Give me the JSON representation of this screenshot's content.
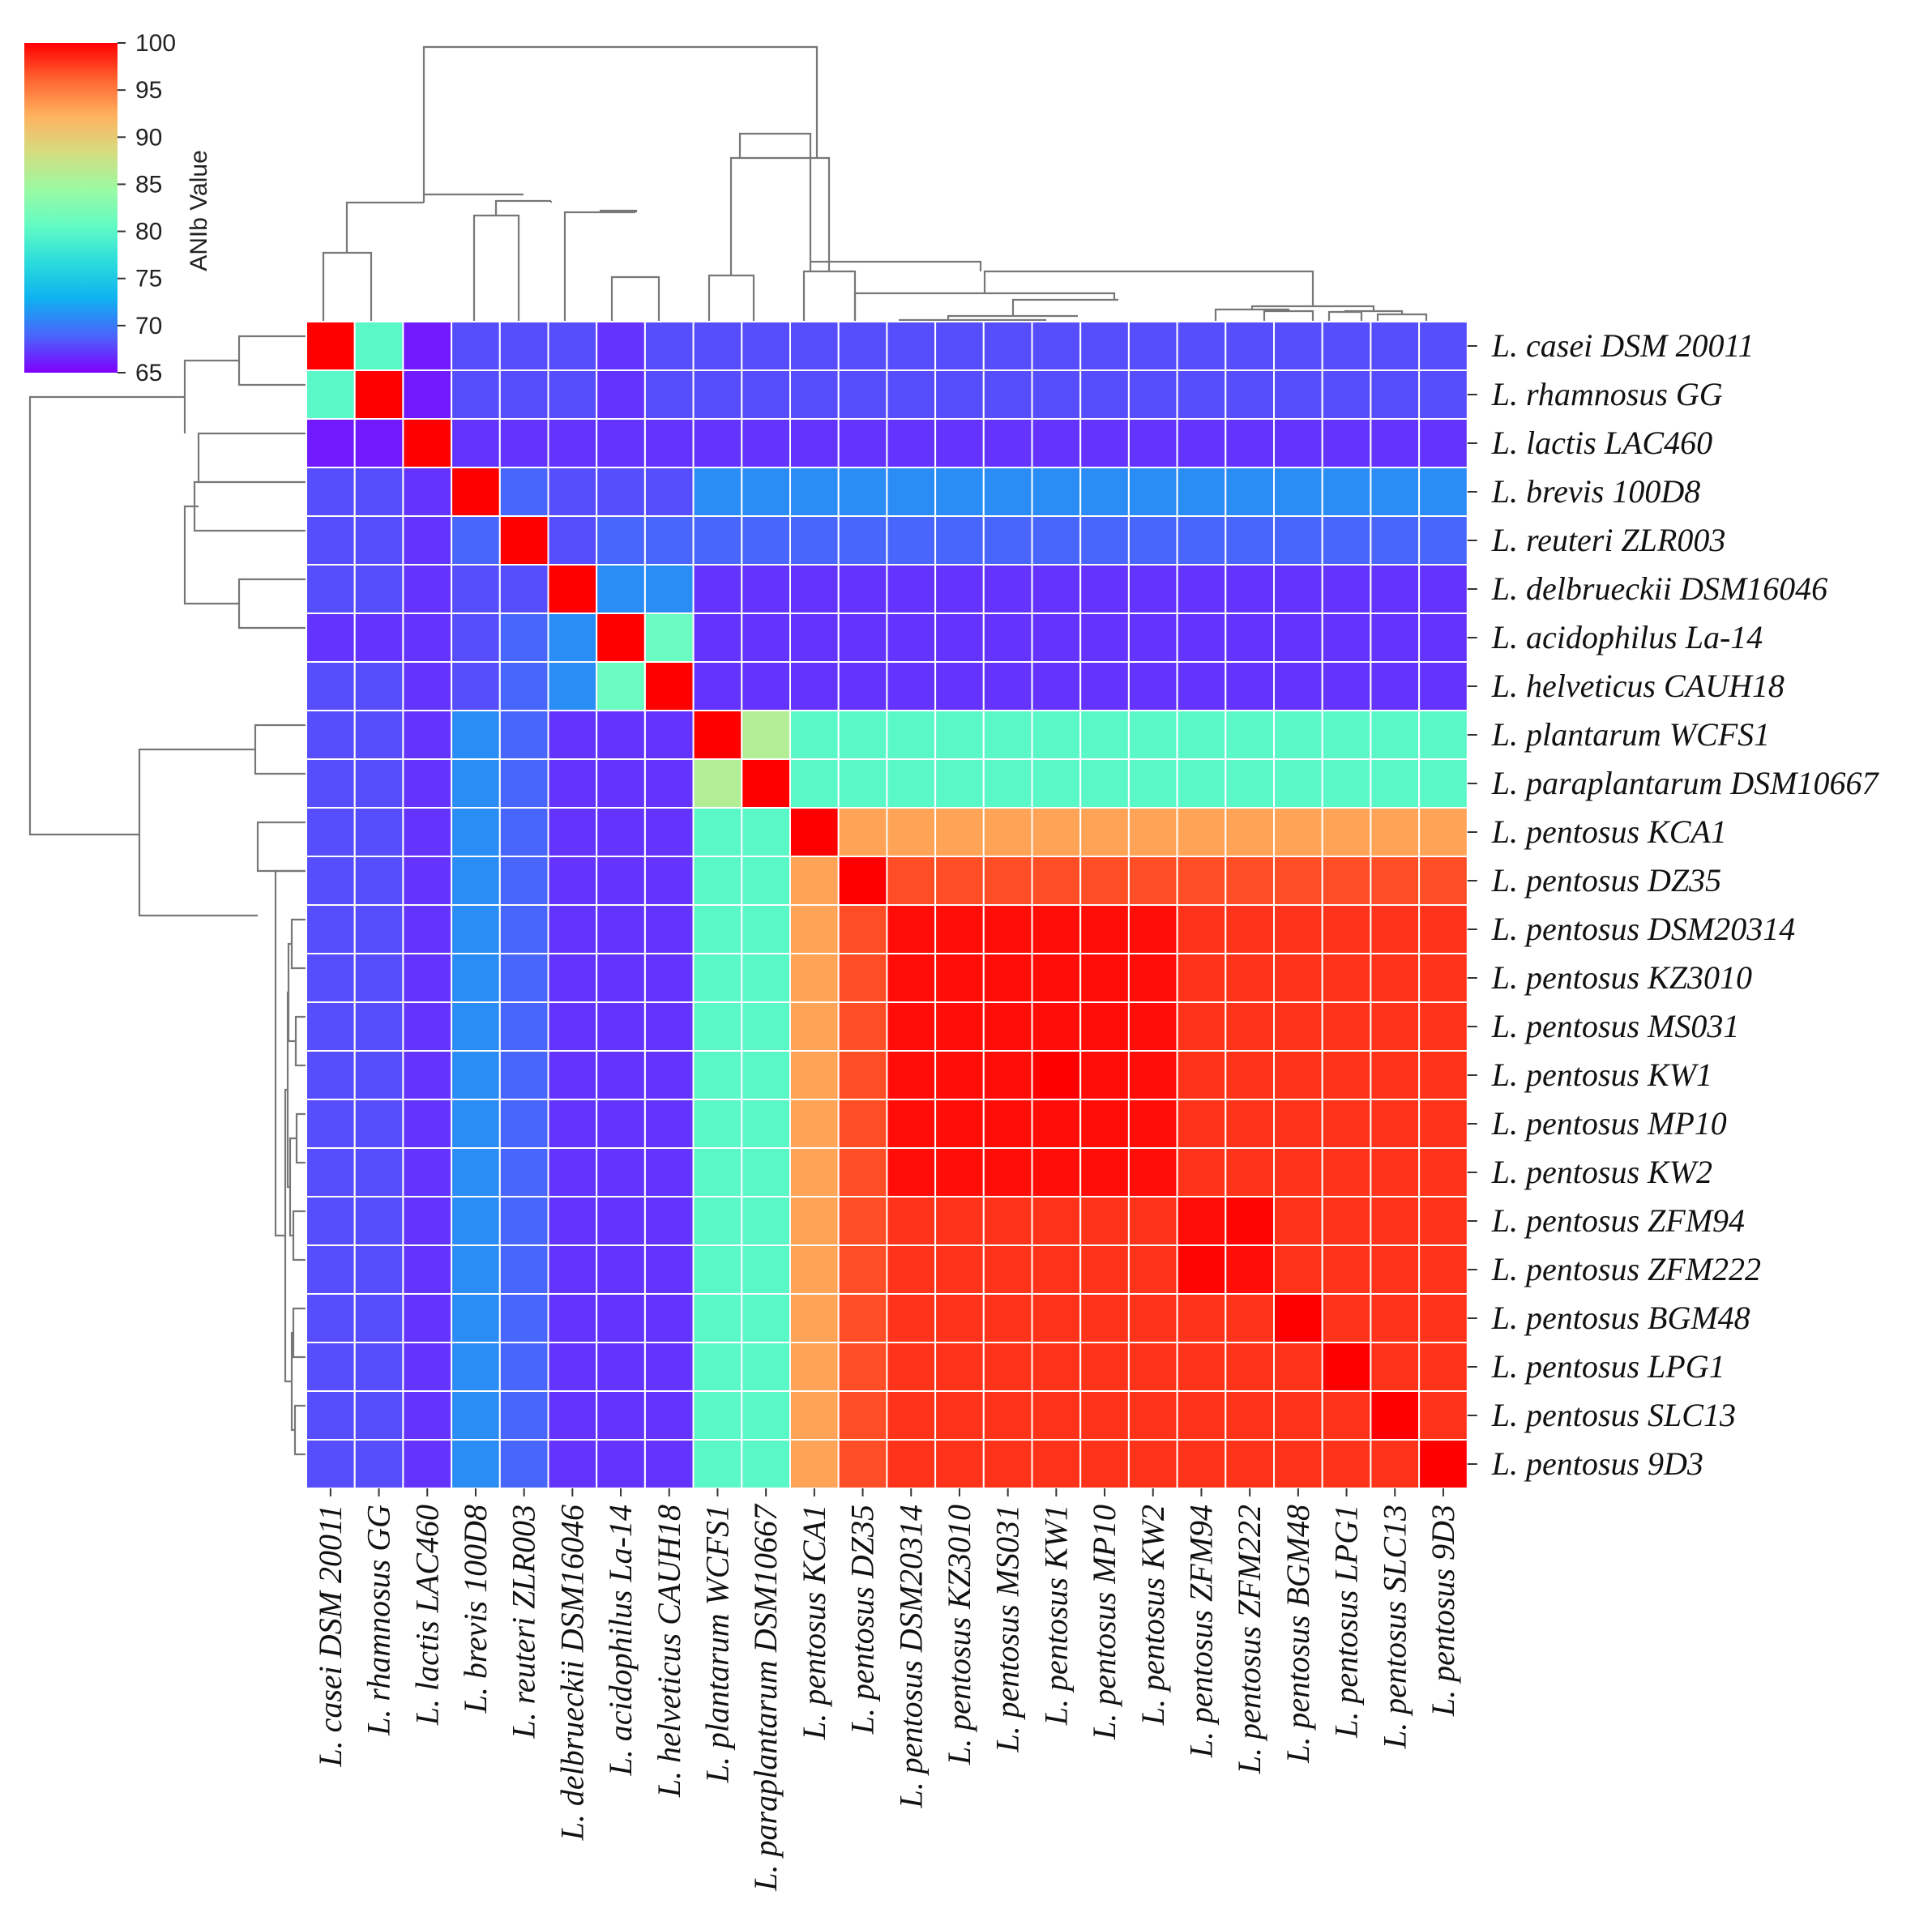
{
  "chart_data": {
    "type": "heatmap",
    "title": "",
    "colorbar": {
      "title": "ANIb Value",
      "min": 65,
      "max": 100,
      "ticks": [
        100,
        95,
        90,
        85,
        80,
        75,
        70,
        65
      ],
      "colormap": "rainbow",
      "colors": [
        "#7f00ff",
        "#4a64fb",
        "#0fb0f0",
        "#2adcdc",
        "#62fbc4",
        "#9bfaa3",
        "#d4dd80",
        "#ffb360",
        "#ff6430",
        "#ff0000"
      ]
    },
    "labels": [
      "L. casei DSM 20011",
      "L. rhamnosus GG",
      "L. lactis LAC460",
      "L. brevis 100D8",
      "L. reuteri ZLR003",
      "L. delbrueckii DSM16046",
      "L. acidophilus La-14",
      "L. helveticus CAUH18",
      "L. plantarum WCFS1",
      "L. paraplantarum DSM10667",
      "L. pentosus KCA1",
      "L. pentosus DZ35",
      "L. pentosus DSM20314",
      "L. pentosus KZ3010",
      "L. pentosus MS031",
      "L. pentosus KW1",
      "L. pentosus MP10",
      "L. pentosus KW2",
      "L. pentosus ZFM94",
      "L. pentosus ZFM222",
      "L. pentosus BGM48",
      "L. pentosus LPG1",
      "L. pentosus SLC13",
      "L. pentosus 9D3"
    ],
    "values": [
      [
        100,
        80,
        66,
        68,
        68,
        68,
        67,
        68,
        68,
        68,
        68,
        68,
        68,
        68,
        68,
        68,
        68,
        68,
        68,
        68,
        68,
        68,
        68,
        68
      ],
      [
        80,
        100,
        66,
        68,
        68,
        68,
        67,
        68,
        68,
        68,
        68,
        68,
        68,
        68,
        68,
        68,
        68,
        68,
        68,
        68,
        68,
        68,
        68,
        68
      ],
      [
        66,
        66,
        100,
        67,
        67,
        67,
        67,
        67,
        67,
        67,
        67,
        67,
        67,
        67,
        67,
        67,
        67,
        67,
        67,
        67,
        67,
        67,
        67,
        67
      ],
      [
        68,
        68,
        67,
        100,
        69,
        68,
        68,
        68,
        71,
        71,
        71,
        71,
        71,
        71,
        71,
        71,
        71,
        71,
        71,
        71,
        71,
        71,
        71,
        71
      ],
      [
        68,
        68,
        67,
        69,
        100,
        68,
        69,
        69,
        69,
        69,
        69,
        69,
        69,
        69,
        69,
        69,
        69,
        69,
        69,
        69,
        69,
        69,
        69,
        69
      ],
      [
        68,
        68,
        67,
        68,
        68,
        100,
        71,
        71,
        67,
        67,
        67,
        67,
        67,
        67,
        67,
        67,
        67,
        67,
        67,
        67,
        67,
        67,
        67,
        67
      ],
      [
        67,
        67,
        67,
        68,
        69,
        71,
        100,
        81,
        67,
        67,
        67,
        67,
        67,
        67,
        67,
        67,
        67,
        67,
        67,
        67,
        67,
        67,
        67,
        67
      ],
      [
        68,
        68,
        67,
        68,
        69,
        71,
        81,
        100,
        67,
        67,
        67,
        67,
        67,
        67,
        67,
        67,
        67,
        67,
        67,
        67,
        67,
        67,
        67,
        67
      ],
      [
        68,
        68,
        67,
        71,
        69,
        67,
        67,
        67,
        100,
        86,
        80,
        80,
        80,
        80,
        80,
        80,
        80,
        80,
        80,
        80,
        80,
        80,
        80,
        80
      ],
      [
        68,
        68,
        67,
        71,
        69,
        67,
        67,
        67,
        86,
        100,
        80,
        80,
        80,
        80,
        80,
        80,
        80,
        80,
        80,
        80,
        80,
        80,
        80,
        80
      ],
      [
        68,
        68,
        67,
        71,
        69,
        67,
        67,
        67,
        80,
        80,
        100,
        93,
        93,
        93,
        93,
        93,
        93,
        93,
        93,
        93,
        93,
        93,
        93,
        93
      ],
      [
        68,
        68,
        67,
        71,
        69,
        67,
        67,
        67,
        80,
        80,
        93,
        100,
        97,
        97,
        97,
        97,
        97,
        97,
        97,
        97,
        97,
        97,
        97,
        97
      ],
      [
        68,
        68,
        67,
        71,
        69,
        67,
        67,
        67,
        80,
        80,
        93,
        97,
        99.5,
        99.5,
        99.5,
        99.5,
        99.5,
        99.5,
        98,
        98,
        98,
        98,
        98,
        98
      ],
      [
        68,
        68,
        67,
        71,
        69,
        67,
        67,
        67,
        80,
        80,
        93,
        97,
        99.5,
        99.5,
        99.5,
        99.5,
        99.5,
        99.5,
        98,
        98,
        98,
        98,
        98,
        98
      ],
      [
        68,
        68,
        67,
        71,
        69,
        67,
        67,
        67,
        80,
        80,
        93,
        97,
        99.5,
        99.5,
        99.5,
        99.5,
        99.5,
        99.5,
        98,
        98,
        98,
        98,
        98,
        98
      ],
      [
        68,
        68,
        67,
        71,
        69,
        67,
        67,
        67,
        80,
        80,
        93,
        97,
        99.5,
        99.5,
        99.5,
        100,
        99.5,
        99.5,
        98,
        98,
        98,
        98,
        98,
        98
      ],
      [
        68,
        68,
        67,
        71,
        69,
        67,
        67,
        67,
        80,
        80,
        93,
        97,
        99.5,
        99.5,
        99.5,
        99.5,
        99.5,
        99.5,
        98,
        98,
        98,
        98,
        98,
        98
      ],
      [
        68,
        68,
        67,
        71,
        69,
        67,
        67,
        67,
        80,
        80,
        93,
        97,
        99.5,
        99.5,
        99.5,
        99.5,
        99.5,
        99.5,
        98,
        98,
        98,
        98,
        98,
        98
      ],
      [
        68,
        68,
        67,
        71,
        69,
        67,
        67,
        67,
        80,
        80,
        93,
        97,
        98,
        98,
        98,
        98,
        98,
        98,
        99.5,
        99.8,
        98,
        98,
        98,
        98
      ],
      [
        68,
        68,
        67,
        71,
        69,
        67,
        67,
        67,
        80,
        80,
        93,
        97,
        98,
        98,
        98,
        98,
        98,
        98,
        99.8,
        99.5,
        98,
        98,
        98,
        98
      ],
      [
        68,
        68,
        67,
        71,
        69,
        67,
        67,
        67,
        80,
        80,
        93,
        97,
        98,
        98,
        98,
        98,
        98,
        98,
        98,
        98,
        100,
        98,
        98,
        98
      ],
      [
        68,
        68,
        67,
        71,
        69,
        67,
        67,
        67,
        80,
        80,
        93,
        97,
        98,
        98,
        98,
        98,
        98,
        98,
        98,
        98,
        98,
        100,
        98,
        98
      ],
      [
        68,
        68,
        67,
        71,
        69,
        67,
        67,
        67,
        80,
        80,
        93,
        97,
        98,
        98,
        98,
        98,
        98,
        98,
        98,
        98,
        98,
        98,
        100,
        98
      ],
      [
        68,
        68,
        67,
        71,
        69,
        67,
        67,
        67,
        80,
        80,
        93,
        97,
        98,
        98,
        98,
        98,
        98,
        98,
        98,
        98,
        98,
        98,
        98,
        100
      ]
    ],
    "dendrogram": "hierarchical clustering shown on top and left margins; leaf order matches labels"
  }
}
